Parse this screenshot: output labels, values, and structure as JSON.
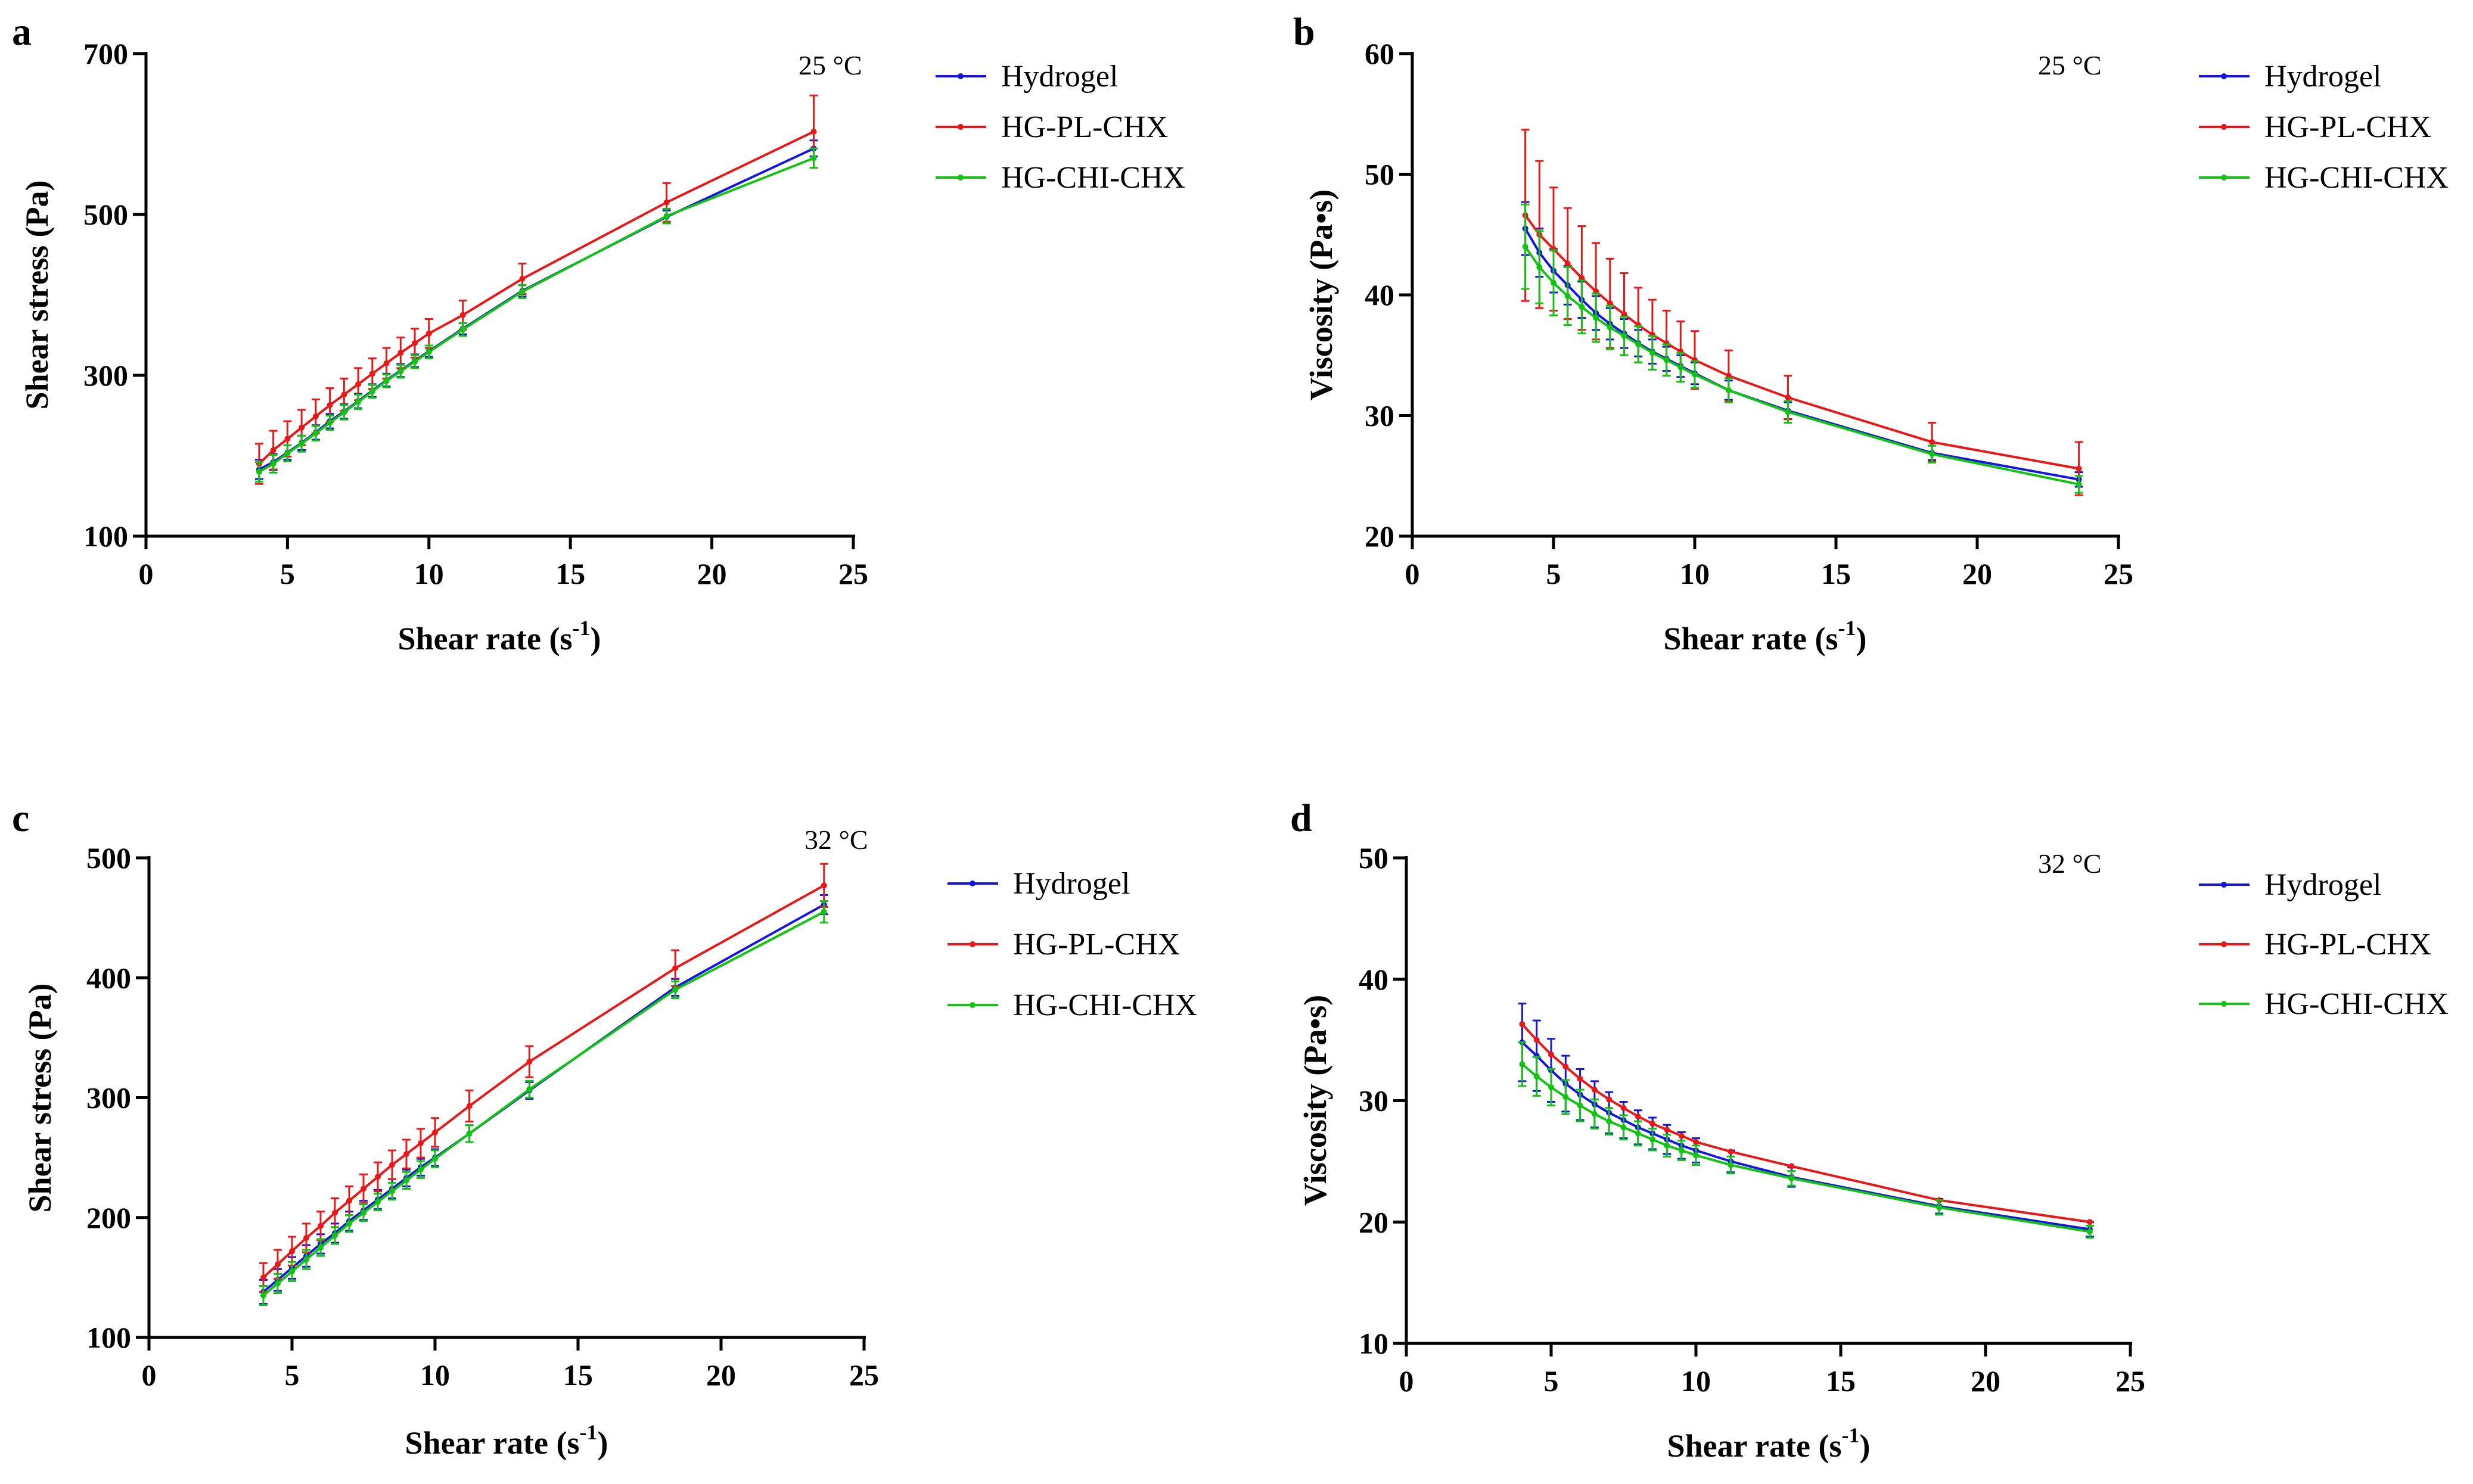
{
  "chart_data": [
    {
      "panel": "a",
      "type": "line",
      "temperature_label": "25 °C",
      "xlabel": "Shear rate (s",
      "xlabel_sup": "-1",
      "xlabel_close": ")",
      "ylabel": "Shear stress (Pa)",
      "xlim": [
        0,
        25
      ],
      "ylim": [
        100,
        700
      ],
      "xticks": [
        0,
        5,
        10,
        15,
        20,
        25
      ],
      "yticks": [
        100,
        300,
        500,
        700
      ],
      "x": [
        4,
        4.5,
        5,
        5.5,
        6,
        6.5,
        7,
        7.5,
        8,
        8.5,
        9,
        9.5,
        10,
        11.2,
        13.3,
        18.4,
        23.6
      ],
      "series": [
        {
          "name": "Hydrogel",
          "color": "#1515e0",
          "values": [
            183,
            192,
            204,
            216,
            229,
            243,
            255,
            268,
            281,
            294,
            306,
            318,
            330,
            358,
            405,
            497,
            582
          ],
          "errors": [
            12,
            10,
            9,
            9,
            9,
            9,
            9,
            9,
            8,
            8,
            8,
            8,
            7,
            7,
            7,
            8,
            10
          ]
        },
        {
          "name": "HG-PL-CHX",
          "color": "#e81818",
          "values": [
            190,
            207,
            221,
            235,
            249,
            263,
            276,
            289,
            302,
            315,
            328,
            340,
            352,
            375,
            420,
            515,
            603
          ],
          "errors": [
            25,
            24,
            22,
            22,
            21,
            21,
            20,
            20,
            19,
            19,
            19,
            18,
            18,
            18,
            19,
            24,
            45
          ]
        },
        {
          "name": "HG-CHI-CHX",
          "color": "#13c313",
          "values": [
            180,
            190,
            203,
            215,
            228,
            241,
            254,
            267,
            280,
            293,
            305,
            317,
            329,
            357,
            404,
            498,
            570
          ],
          "errors": [
            12,
            11,
            10,
            10,
            9,
            9,
            9,
            9,
            8,
            8,
            8,
            8,
            8,
            8,
            8,
            9,
            12
          ]
        }
      ]
    },
    {
      "panel": "b",
      "type": "line",
      "temperature_label": "25 °C",
      "xlabel": "Shear rate (s",
      "xlabel_sup": "-1",
      "xlabel_close": ")",
      "ylabel": "Viscosity (Pa•s)",
      "xlim": [
        0,
        25
      ],
      "ylim": [
        20,
        60
      ],
      "xticks": [
        0,
        5,
        10,
        15,
        20,
        25
      ],
      "yticks": [
        20,
        30,
        40,
        50,
        60
      ],
      "x": [
        4,
        4.5,
        5,
        5.5,
        6,
        6.5,
        7,
        7.5,
        8,
        8.5,
        9,
        9.5,
        10,
        11.2,
        13.3,
        18.4,
        23.6
      ],
      "series": [
        {
          "name": "Hydrogel",
          "color": "#1515e0",
          "values": [
            45.5,
            43.5,
            42,
            40.8,
            39.6,
            38.5,
            37.6,
            36.8,
            36,
            35.3,
            34.7,
            34.1,
            33.5,
            32.1,
            30.4,
            26.9,
            24.7
          ],
          "errors": [
            2.2,
            2,
            1.8,
            1.6,
            1.5,
            1.4,
            1.3,
            1.2,
            1.1,
            1,
            1,
            0.9,
            0.9,
            0.8,
            0.7,
            0.6,
            0.6
          ]
        },
        {
          "name": "HG-PL-CHX",
          "color": "#e81818",
          "values": [
            46.6,
            45,
            43.8,
            42.6,
            41.4,
            40.3,
            39.3,
            38.4,
            37.5,
            36.7,
            36,
            35.3,
            34.6,
            33.3,
            31.5,
            27.8,
            25.6
          ],
          "errors": [
            7.1,
            6.1,
            5.1,
            4.6,
            4.3,
            4,
            3.7,
            3.4,
            3.1,
            2.9,
            2.7,
            2.5,
            2.4,
            2.1,
            1.8,
            1.6,
            2.2
          ]
        },
        {
          "name": "HG-CHI-CHX",
          "color": "#13c313",
          "values": [
            44,
            42.3,
            41,
            39.9,
            39,
            38.1,
            37.3,
            36.6,
            35.9,
            35.2,
            34.6,
            34,
            33.4,
            32.1,
            30.3,
            26.8,
            24.3
          ],
          "errors": [
            3.5,
            3,
            2.7,
            2.4,
            2.2,
            2,
            1.8,
            1.6,
            1.5,
            1.4,
            1.3,
            1.2,
            1.1,
            1,
            0.9,
            0.7,
            0.7
          ]
        }
      ]
    },
    {
      "panel": "c",
      "type": "line",
      "temperature_label": "32 °C",
      "xlabel": "Shear rate (s",
      "xlabel_sup": "-1",
      "xlabel_close": ")",
      "ylabel": "Shear stress (Pa)",
      "xlim": [
        0,
        25
      ],
      "ylim": [
        100,
        500
      ],
      "xticks": [
        0,
        5,
        10,
        15,
        20,
        25
      ],
      "yticks": [
        100,
        200,
        300,
        400,
        500
      ],
      "x": [
        4,
        4.5,
        5,
        5.5,
        6,
        6.5,
        7,
        7.5,
        8,
        8.5,
        9,
        9.5,
        10,
        11.2,
        13.3,
        18.4,
        23.6
      ],
      "series": [
        {
          "name": "Hydrogel",
          "color": "#1515e0",
          "values": [
            138,
            148,
            158,
            168,
            178,
            187,
            197,
            206,
            215,
            224,
            233,
            242,
            250,
            270,
            306,
            392,
            461
          ],
          "errors": [
            10,
            9,
            9,
            9,
            8,
            8,
            8,
            8,
            8,
            8,
            7,
            7,
            7,
            7,
            7,
            7,
            8
          ]
        },
        {
          "name": "HG-PL-CHX",
          "color": "#e81818",
          "values": [
            150,
            161,
            172,
            183,
            193,
            204,
            214,
            224,
            234,
            244,
            253,
            262,
            271,
            293,
            330,
            408,
            477
          ],
          "errors": [
            12,
            12,
            12,
            12,
            12,
            12,
            12,
            12,
            12,
            12,
            12,
            12,
            12,
            13,
            13,
            15,
            18
          ]
        },
        {
          "name": "HG-CHI-CHX",
          "color": "#13c313",
          "values": [
            135,
            145,
            155,
            165,
            175,
            185,
            195,
            204,
            213,
            222,
            231,
            240,
            249,
            270,
            307,
            390,
            455
          ],
          "errors": [
            8,
            8,
            8,
            8,
            7,
            7,
            7,
            7,
            7,
            7,
            7,
            7,
            7,
            7,
            7,
            7,
            9
          ]
        }
      ]
    },
    {
      "panel": "d",
      "type": "line",
      "temperature_label": "32 °C",
      "xlabel": "Shear rate (s",
      "xlabel_sup": "-1",
      "xlabel_close": ")",
      "ylabel": "Viscosity (Pa•s)",
      "xlim": [
        0,
        25
      ],
      "ylim": [
        10,
        50
      ],
      "xticks": [
        0,
        5,
        10,
        15,
        20,
        25
      ],
      "yticks": [
        10,
        20,
        30,
        40,
        50
      ],
      "x": [
        4,
        4.5,
        5,
        5.5,
        6,
        6.5,
        7,
        7.5,
        8,
        8.5,
        9,
        9.5,
        10,
        11.2,
        13.3,
        18.4,
        23.6
      ],
      "series": [
        {
          "name": "Hydrogel",
          "color": "#1515e0",
          "values": [
            34.8,
            33.7,
            32.5,
            31.4,
            30.5,
            29.7,
            29,
            28.4,
            27.8,
            27.3,
            26.8,
            26.3,
            25.9,
            25,
            23.7,
            21.3,
            19.4
          ],
          "errors": [
            3.2,
            2.9,
            2.6,
            2.3,
            2.1,
            1.9,
            1.7,
            1.5,
            1.4,
            1.3,
            1.2,
            1.1,
            1,
            0.9,
            0.8,
            0.6,
            0.6
          ]
        },
        {
          "name": "HG-PL-CHX",
          "color": "#e81818",
          "values": [
            36.3,
            35,
            33.8,
            32.8,
            31.8,
            30.9,
            30.1,
            29.4,
            28.7,
            28.1,
            27.6,
            27.1,
            26.6,
            25.8,
            24.6,
            21.8,
            20
          ]
        },
        {
          "name": "HG-CHI-CHX",
          "color": "#13c313",
          "values": [
            33,
            32,
            31.1,
            30.3,
            29.6,
            28.9,
            28.3,
            27.8,
            27.3,
            26.8,
            26.3,
            25.9,
            25.5,
            24.7,
            23.6,
            21.2,
            19.2
          ],
          "errors": [
            1.8,
            1.6,
            1.5,
            1.4,
            1.3,
            1.2,
            1.1,
            1,
            1,
            0.9,
            0.9,
            0.8,
            0.8,
            0.7,
            0.6,
            0.6,
            0.5
          ]
        }
      ]
    }
  ]
}
